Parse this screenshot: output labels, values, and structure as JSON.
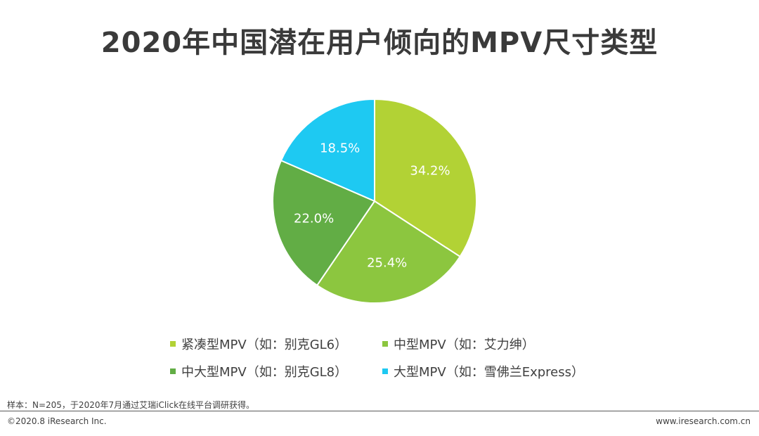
{
  "chart_data": {
    "type": "pie",
    "title": "2020年中国潜在用户倾向的MPV尺寸类型",
    "categories": [
      "紧凑型MPV（如：别克GL6）",
      "中型MPV（如：艾力绅）",
      "中大型MPV（如：别克GL8）",
      "大型MPV（如：雪佛兰Express）"
    ],
    "values": [
      34.2,
      25.4,
      22.0,
      18.5
    ],
    "labels": [
      "34.2%",
      "25.4%",
      "22.0%",
      "18.5%"
    ],
    "colors": [
      "#b2d235",
      "#8cc63f",
      "#62ad45",
      "#1ec9f2"
    ],
    "legend_position": "bottom",
    "start": "top",
    "direction": "clockwise"
  },
  "footer": {
    "note": "样本：N=205，于2020年7月通过艾瑞iClick在线平台调研获得。",
    "copyright": "©2020.8 iResearch Inc.",
    "website": "www.iresearch.com.cn"
  }
}
